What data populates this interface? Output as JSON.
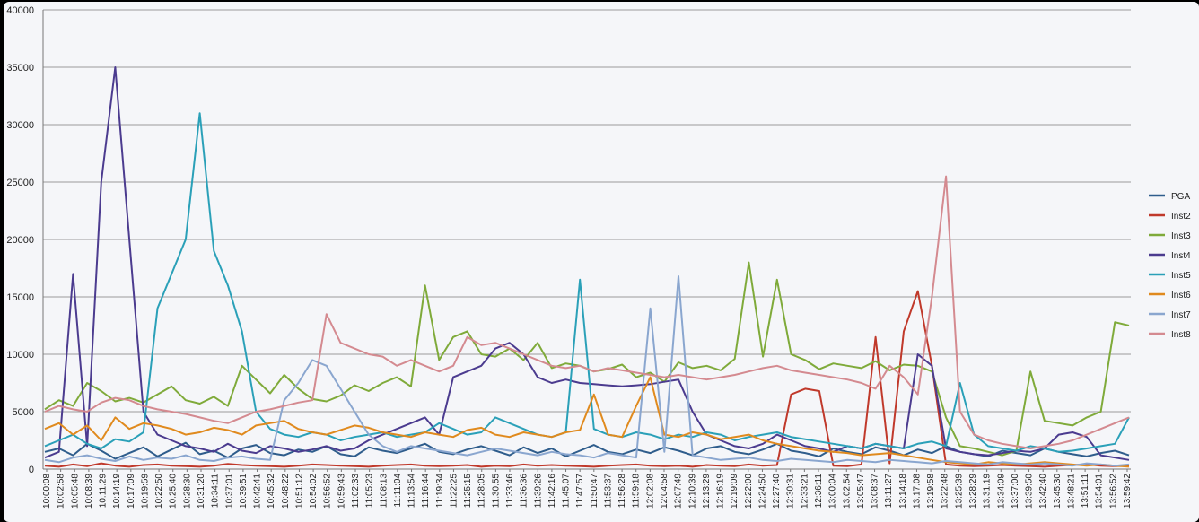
{
  "chart_data": {
    "type": "line",
    "title": "",
    "xlabel": "",
    "ylabel": "",
    "ylim": [
      0,
      40000
    ],
    "yticks": [
      "0",
      "5000",
      "10000",
      "15000",
      "20000",
      "25000",
      "30000",
      "35000",
      "40000"
    ],
    "grid": "horizontal",
    "legend_position": "right",
    "x_tick_labels": [
      "10:00:08",
      "10:02:58",
      "10:05:48",
      "10:08:39",
      "10:11:29",
      "10:14:19",
      "10:17:09",
      "10:19:59",
      "10:22:50",
      "10:25:40",
      "10:28:30",
      "10:31:20",
      "10:34:11",
      "10:37:01",
      "10:39:51",
      "10:42:41",
      "10:45:32",
      "10:48:22",
      "10:51:12",
      "10:54:02",
      "10:56:52",
      "10:59:43",
      "11:02:33",
      "11:05:23",
      "11:08:13",
      "11:11:04",
      "11:13:54",
      "11:16:44",
      "11:19:34",
      "11:22:25",
      "11:25:15",
      "11:28:05",
      "11:30:55",
      "11:33:46",
      "11:36:36",
      "11:39:26",
      "11:42:16",
      "11:45:07",
      "11:47:57",
      "11:50:47",
      "11:53:37",
      "11:56:28",
      "11:59:18",
      "12:02:08",
      "12:04:58",
      "12:07:49",
      "12:10:39",
      "12:13:29",
      "12:16:19",
      "12:19:09",
      "12:22:00",
      "12:24:50",
      "12:27:40",
      "12:30:31",
      "12:33:21",
      "12:36:11",
      "13:00:04",
      "13:02:54",
      "13:05:47",
      "13:08:37",
      "13:11:27",
      "13:14:18",
      "13:17:08",
      "13:19:58",
      "13:22:48",
      "13:25:39",
      "13:28:29",
      "13:31:19",
      "13:34:09",
      "13:37:00",
      "13:39:50",
      "13:42:40",
      "13:45:30",
      "13:48:21",
      "13:51:11",
      "13:54:01",
      "13:56:52",
      "13:59:42"
    ],
    "series": [
      {
        "name": "PGA",
        "color": "#2f5d8c",
        "values": [
          1500,
          1800,
          1200,
          2200,
          1600,
          900,
          1400,
          1900,
          1100,
          1700,
          2300,
          1300,
          1600,
          1000,
          1800,
          2100,
          1400,
          1200,
          1700,
          1500,
          2000,
          1300,
          1100,
          1900,
          1600,
          1400,
          1800,
          2200,
          1500,
          1300,
          1700,
          2000,
          1600,
          1200,
          1900,
          1400,
          1800,
          1100,
          1600,
          2100,
          1500,
          1300,
          1700,
          1400,
          1900,
          1600,
          1200,
          1800,
          2000,
          1500,
          1300,
          1700,
          2200,
          1600,
          1400,
          1100,
          1800,
          1500,
          1300,
          1900,
          1600,
          1200,
          1700,
          1400,
          2000,
          1500,
          1300,
          1100,
          1600,
          1400,
          1200,
          1800,
          1500,
          1300,
          1100,
          1400,
          1600,
          1200
        ]
      },
      {
        "name": "Inst2",
        "color": "#c0392b",
        "values": [
          300,
          200,
          400,
          250,
          500,
          300,
          200,
          350,
          400,
          300,
          250,
          200,
          300,
          450,
          350,
          300,
          250,
          200,
          300,
          400,
          350,
          300,
          250,
          200,
          300,
          350,
          400,
          300,
          250,
          300,
          350,
          200,
          300,
          250,
          400,
          300,
          350,
          300,
          250,
          200,
          300,
          350,
          400,
          300,
          250,
          300,
          200,
          350,
          300,
          250,
          400,
          300,
          350,
          6500,
          7000,
          6800,
          300,
          250,
          400,
          11500,
          500,
          12000,
          15500,
          9000,
          400,
          300,
          250,
          300,
          350,
          300,
          250,
          200,
          300,
          350,
          400,
          300,
          250,
          300
        ]
      },
      {
        "name": "Inst3",
        "color": "#7faa3a",
        "values": [
          5200,
          6000,
          5500,
          7500,
          6800,
          5900,
          6200,
          5800,
          6500,
          7200,
          6000,
          5700,
          6300,
          5500,
          9000,
          7800,
          6600,
          8200,
          7000,
          6100,
          5900,
          6400,
          7300,
          6800,
          7500,
          8000,
          7200,
          16000,
          9500,
          11500,
          12000,
          10000,
          9800,
          10500,
          9500,
          11000,
          8800,
          9200,
          9000,
          8500,
          8700,
          9100,
          8000,
          8400,
          7600,
          9300,
          8800,
          9000,
          8600,
          9600,
          18000,
          9800,
          16500,
          10000,
          9500,
          8700,
          9200,
          9000,
          8800,
          9400,
          8600,
          9100,
          9000,
          8500,
          4500,
          2000,
          1800,
          1500,
          1200,
          1600,
          8500,
          4200,
          4000,
          3800,
          4500,
          5000,
          12800,
          12500
        ]
      },
      {
        "name": "Inst4",
        "color": "#4b3b8f",
        "values": [
          1000,
          1500,
          17000,
          2000,
          25000,
          35000,
          20000,
          5000,
          3000,
          2500,
          2000,
          1800,
          1500,
          2200,
          1600,
          1400,
          2000,
          1800,
          1500,
          1700,
          2000,
          1600,
          1800,
          2500,
          3000,
          3500,
          4000,
          4500,
          3000,
          8000,
          8500,
          9000,
          10500,
          11000,
          10000,
          8000,
          7500,
          7800,
          7500,
          7400,
          7300,
          7200,
          7300,
          7400,
          7600,
          7800,
          5000,
          3000,
          2500,
          2000,
          1800,
          2200,
          3000,
          2500,
          2000,
          1800,
          1500,
          2000,
          1800,
          2200,
          2000,
          1800,
          10000,
          9000,
          1800,
          1500,
          1300,
          1200,
          1400,
          1600,
          1500,
          1800,
          3000,
          3200,
          2800,
          1200,
          1000,
          800
        ]
      },
      {
        "name": "Inst5",
        "color": "#2aa0b8",
        "values": [
          2000,
          2500,
          3000,
          2200,
          1800,
          2600,
          2400,
          3200,
          14000,
          17000,
          20000,
          31000,
          19000,
          16000,
          12000,
          5000,
          3500,
          3000,
          2800,
          3200,
          3000,
          2500,
          2800,
          3000,
          3200,
          2800,
          3000,
          3200,
          4000,
          3500,
          3000,
          3200,
          4500,
          4000,
          3500,
          3000,
          2800,
          3200,
          16500,
          3500,
          3000,
          2800,
          3200,
          3000,
          2600,
          3000,
          2800,
          3200,
          3000,
          2500,
          2800,
          3000,
          3200,
          2800,
          2600,
          2400,
          2200,
          2000,
          1800,
          2200,
          2000,
          1800,
          2200,
          2400,
          2000,
          7500,
          3000,
          2000,
          1800,
          1600,
          2000,
          1800,
          1500,
          1600,
          1800,
          2000,
          2200,
          4500
        ]
      },
      {
        "name": "Inst6",
        "color": "#e08a1e",
        "values": [
          3500,
          4000,
          3000,
          3800,
          2500,
          4500,
          3500,
          4000,
          3800,
          3500,
          3000,
          3200,
          3600,
          3400,
          3000,
          3800,
          4000,
          4200,
          3500,
          3200,
          3000,
          3400,
          3800,
          3600,
          3200,
          3000,
          2800,
          3200,
          3000,
          2800,
          3400,
          3600,
          3000,
          2800,
          3200,
          3000,
          2800,
          3200,
          3400,
          6500,
          3000,
          2800,
          5500,
          8000,
          3000,
          2800,
          3200,
          3000,
          2600,
          2800,
          3000,
          2500,
          2200,
          2000,
          1800,
          1600,
          1500,
          1400,
          1200,
          1300,
          1400,
          1200,
          1000,
          800,
          600,
          500,
          400,
          600,
          500,
          400,
          500,
          600,
          500,
          400,
          300,
          400,
          300,
          200
        ]
      },
      {
        "name": "Inst7",
        "color": "#8aa6cf",
        "values": [
          800,
          600,
          1000,
          1200,
          900,
          700,
          1100,
          800,
          1000,
          900,
          1200,
          800,
          700,
          1000,
          1100,
          900,
          800,
          6000,
          7500,
          9500,
          9000,
          7000,
          5000,
          3000,
          2000,
          1500,
          2000,
          1800,
          1600,
          1400,
          1200,
          1500,
          1800,
          1600,
          1400,
          1200,
          1500,
          1300,
          1200,
          1000,
          1400,
          1200,
          1000,
          14000,
          1500,
          16800,
          1200,
          1000,
          800,
          900,
          1000,
          800,
          700,
          900,
          800,
          700,
          600,
          800,
          700,
          600,
          800,
          700,
          600,
          500,
          700,
          600,
          500,
          400,
          600,
          500,
          400,
          500,
          400,
          300,
          500,
          400,
          300,
          400
        ]
      },
      {
        "name": "Inst8",
        "color": "#d48a90",
        "values": [
          5000,
          5500,
          5200,
          5000,
          5800,
          6200,
          6000,
          5500,
          5200,
          5000,
          4800,
          4500,
          4200,
          4000,
          4500,
          5000,
          5200,
          5500,
          5800,
          6000,
          13500,
          11000,
          10500,
          10000,
          9800,
          9000,
          9500,
          9000,
          8500,
          9000,
          11500,
          10800,
          11000,
          10500,
          10000,
          9500,
          9000,
          8800,
          9000,
          8500,
          8800,
          8600,
          8400,
          8200,
          8000,
          8200,
          8000,
          7800,
          8000,
          8200,
          8500,
          8800,
          9000,
          8600,
          8400,
          8200,
          8000,
          7800,
          7500,
          7000,
          9000,
          8000,
          6500,
          15000,
          25500,
          5000,
          3000,
          2500,
          2200,
          2000,
          1800,
          2000,
          2200,
          2500,
          3000,
          3500,
          4000,
          4500
        ]
      }
    ]
  }
}
